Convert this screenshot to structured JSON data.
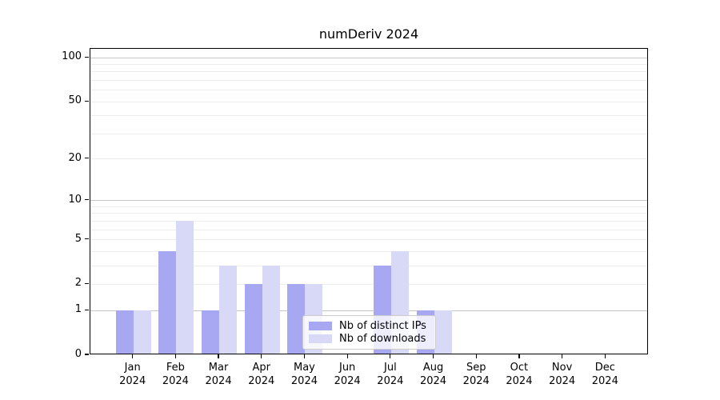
{
  "title": "numDeriv 2024",
  "chart_data": {
    "type": "bar",
    "title": "numDeriv 2024",
    "xlabel": "",
    "ylabel": "",
    "categories": [
      "Jan 2024",
      "Feb 2024",
      "Mar 2024",
      "Apr 2024",
      "May 2024",
      "Jun 2024",
      "Jul 2024",
      "Aug 2024",
      "Sep 2024",
      "Oct 2024",
      "Nov 2024",
      "Dec 2024"
    ],
    "series": [
      {
        "name": "Nb of distinct IPs",
        "color": "#a7a7f2",
        "values": [
          1,
          4,
          1,
          2,
          2,
          0,
          3,
          1,
          0,
          0,
          0,
          0
        ]
      },
      {
        "name": "Nb of downloads",
        "color": "#d8d8f7",
        "values": [
          1,
          7,
          3,
          3,
          2,
          0,
          4,
          1,
          0,
          0,
          0,
          0
        ]
      }
    ],
    "yscale": "log1p",
    "ylim": [
      0,
      115
    ],
    "yticks": [
      0,
      1,
      2,
      5,
      10,
      20,
      50,
      100
    ],
    "gridlines": [
      1,
      2,
      3,
      4,
      5,
      6,
      7,
      8,
      9,
      10,
      20,
      30,
      40,
      50,
      60,
      70,
      80,
      90,
      100
    ],
    "major_gridlines": [
      1,
      10,
      100
    ],
    "grid_color_major": "#c6c6c6",
    "grid_color_minor": "#ededed",
    "legend_position": "lower-right-inside",
    "grid": "on"
  }
}
